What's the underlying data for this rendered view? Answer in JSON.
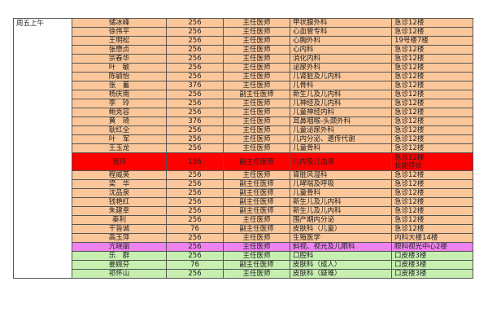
{
  "day_label": "周五上午",
  "colors": {
    "peach": "#fbc79a",
    "red": "#ff0000",
    "pink": "#ee82ee",
    "green": "#c6efb0"
  },
  "rows": [
    {
      "name": "储冰峰",
      "num": "256",
      "title": "主任医师",
      "dept": "甲状腺外科",
      "loc": "急诊12楼",
      "bg": "peach"
    },
    {
      "name": "徐伟平",
      "num": "256",
      "title": "主任医师",
      "dept": "心血管专科",
      "loc": "急诊12楼",
      "bg": "peach"
    },
    {
      "name": "王明松",
      "num": "256",
      "title": "主任医师",
      "dept": "心胸外科",
      "loc": "19号楼7楼",
      "bg": "peach"
    },
    {
      "name": "张懋贞",
      "num": "256",
      "title": "主任医师",
      "dept": "心内科",
      "loc": "急诊12楼",
      "bg": "peach"
    },
    {
      "name": "宗春华",
      "num": "256",
      "title": "主任医师",
      "dept": "消化内科",
      "loc": "急诊12楼",
      "bg": "peach"
    },
    {
      "name": "叶　敏",
      "num": "256",
      "title": "主任医师",
      "dept": "泌尿外科",
      "loc": "急诊12楼",
      "bg": "peach"
    },
    {
      "name": "陈毓怡",
      "num": "256",
      "title": "主任医师",
      "dept": "儿肾脏及儿内科",
      "loc": "急诊12楼",
      "bg": "peach"
    },
    {
      "name": "张　蓄",
      "num": "376",
      "title": "主任医师",
      "dept": "儿骨科",
      "loc": "急诊12楼",
      "bg": "peach"
    },
    {
      "name": "杨庆南",
      "num": "256",
      "title": "副主任医师",
      "dept": "新生儿及儿内科",
      "loc": "急诊12楼",
      "bg": "peach"
    },
    {
      "name": "李　玲",
      "num": "256",
      "title": "主任医师",
      "dept": "儿神经及儿内科",
      "loc": "急诊12楼",
      "bg": "peach"
    },
    {
      "name": "鲍克容",
      "num": "256",
      "title": "主任医师",
      "dept": "儿童神经内科",
      "loc": "急诊12楼",
      "bg": "peach"
    },
    {
      "name": "黄　琦",
      "num": "376",
      "title": "主任医师",
      "dept": "耳鼻咽喉-头颈外科",
      "loc": "急诊12楼",
      "bg": "peach"
    },
    {
      "name": "耿红全",
      "num": "256",
      "title": "主任医师",
      "dept": "儿童泌尿外科",
      "loc": "急诊12楼",
      "bg": "peach"
    },
    {
      "name": "叶　军",
      "num": "256",
      "title": "主任医师",
      "dept": "儿内分泌、遗传代谢",
      "loc": "急诊12楼",
      "bg": "peach"
    },
    {
      "name": "王玉龙",
      "num": "256",
      "title": "主任医师",
      "dept": "儿童骨科",
      "loc": "急诊12楼",
      "bg": "peach"
    },
    {
      "name": "张玲",
      "num": "136",
      "title": "副主任医师",
      "dept": "儿内及儿血液",
      "loc": "急诊12楼",
      "loc2": "长期停诊",
      "bg": "red",
      "tall": true
    },
    {
      "name": "程威英",
      "num": "256",
      "title": "主任医师",
      "dept": "肾脏风湿科",
      "loc": "急诊12楼",
      "bg": "peach"
    },
    {
      "name": "梁　华",
      "num": "256",
      "title": "副主任医师",
      "dept": "儿哮喘及呼吸",
      "loc": "急诊12楼",
      "bg": "peach"
    },
    {
      "name": "沈品泉",
      "num": "256",
      "title": "副主任医师",
      "dept": "儿童骨科",
      "loc": "急诊12楼",
      "bg": "peach"
    },
    {
      "name": "钱艳红",
      "num": "256",
      "title": "副主任医师",
      "dept": "新生儿及儿内科",
      "loc": "急诊12楼",
      "bg": "peach"
    },
    {
      "name": "朱建幸",
      "num": "256",
      "title": "副主任医师",
      "dept": "新生儿及儿内科",
      "loc": "急诊12楼",
      "bg": "peach"
    },
    {
      "name": "秦利",
      "num": "256",
      "title": "主任医师",
      "dept": "围产期内分泌",
      "loc": "急诊12楼",
      "bg": "peach"
    },
    {
      "name": "干皆诚",
      "num": "76",
      "title": "副主任医师",
      "dept": "皮肤科（儿童）",
      "loc": "急诊12楼",
      "bg": "peach"
    },
    {
      "name": "高玉萍",
      "num": "256",
      "title": "主任医师",
      "dept": "生殖医学",
      "loc": "内科大楼14楼",
      "bg": "peach"
    },
    {
      "name": "亢晓丽",
      "num": "256",
      "title": "主任医师",
      "dept": "斜视、视光及儿眼科",
      "loc": "眼科视光中心2楼",
      "bg": "pink"
    },
    {
      "name": "乐　群",
      "num": "256",
      "title": "主任医师",
      "dept": "口腔科",
      "loc": "口皮楼3楼",
      "bg": "green"
    },
    {
      "name": "姜婉芬",
      "num": "76",
      "title": "副主任医师",
      "dept": "皮肤科（成人）",
      "loc": "口皮楼3楼",
      "bg": "green"
    },
    {
      "name": "祁怀山",
      "num": "256",
      "title": "主任医师",
      "dept": "皮肤科（疑难）",
      "loc": "口皮楼3楼",
      "bg": "green"
    }
  ]
}
